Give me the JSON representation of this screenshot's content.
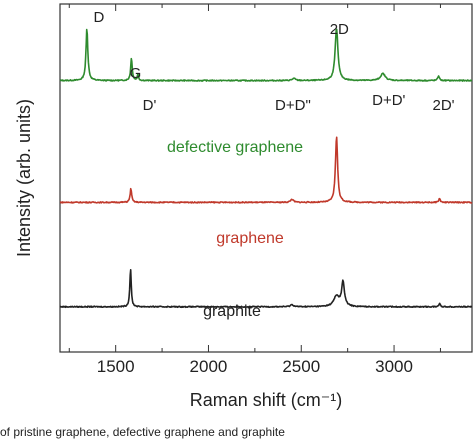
{
  "chart_data": {
    "type": "line",
    "title": "",
    "xlabel": "Raman shift (cm⁻¹)",
    "ylabel": "Intensity (arb. units)",
    "xlim": [
      1200,
      3420
    ],
    "x_ticks": [
      1500,
      2000,
      2500,
      3000
    ],
    "grid": false,
    "legend": "none",
    "series": [
      {
        "name": "defective graphene",
        "color": "#2e8b2e",
        "baseline": 0.78,
        "peaks": [
          {
            "x": 1345,
            "height": 0.15,
            "width": 12
          },
          {
            "x": 1585,
            "height": 0.065,
            "width": 10
          },
          {
            "x": 1620,
            "height": 0.018,
            "width": 8
          },
          {
            "x": 2460,
            "height": 0.006,
            "width": 20
          },
          {
            "x": 2690,
            "height": 0.15,
            "width": 18
          },
          {
            "x": 2940,
            "height": 0.02,
            "width": 30
          },
          {
            "x": 3240,
            "height": 0.014,
            "width": 10
          }
        ]
      },
      {
        "name": "graphene",
        "color": "#c0392b",
        "baseline": 0.43,
        "peaks": [
          {
            "x": 1582,
            "height": 0.04,
            "width": 10
          },
          {
            "x": 2450,
            "height": 0.009,
            "width": 18
          },
          {
            "x": 2690,
            "height": 0.19,
            "width": 14
          },
          {
            "x": 3245,
            "height": 0.012,
            "width": 9
          }
        ]
      },
      {
        "name": "graphite",
        "color": "#222222",
        "baseline": 0.13,
        "peaks": [
          {
            "x": 1580,
            "height": 0.11,
            "width": 9
          },
          {
            "x": 2450,
            "height": 0.006,
            "width": 20
          },
          {
            "x": 2690,
            "height": 0.03,
            "width": 35
          },
          {
            "x": 2725,
            "height": 0.07,
            "width": 18
          },
          {
            "x": 3245,
            "height": 0.01,
            "width": 9
          }
        ]
      }
    ],
    "peak_annotations": [
      {
        "text": "D",
        "x": 1345,
        "series": 0
      },
      {
        "text": "G",
        "x": 1585,
        "series": 0
      },
      {
        "text": "D'",
        "x": 1650,
        "series": 0
      },
      {
        "text": "D+D\"",
        "x": 2450,
        "series": 0
      },
      {
        "text": "2D",
        "x": 2700,
        "series": 0
      },
      {
        "text": "D+D'",
        "x": 2950,
        "series": 0
      },
      {
        "text": "2D'",
        "x": 3245,
        "series": 0
      }
    ]
  },
  "caption": "of pristine graphene, defective graphene and graphite"
}
